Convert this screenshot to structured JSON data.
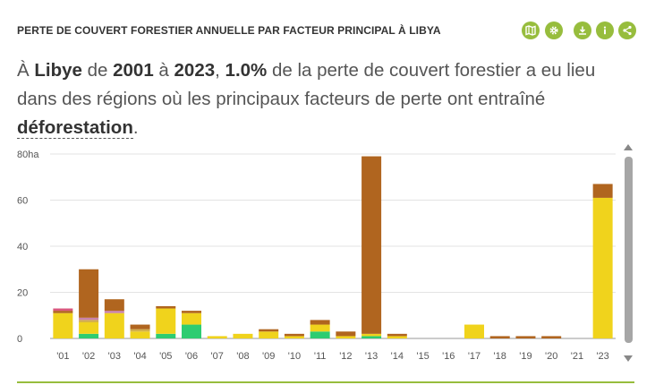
{
  "widget": {
    "title": "PERTE DE COUVERT FORESTIER ANNUELLE PAR FACTEUR PRINCIPAL À LIBYA",
    "sentence": {
      "p1": "À ",
      "country": "Libye",
      "p2": " de ",
      "start_year": "2001",
      "p3": " à ",
      "end_year": "2023",
      "p4": ", ",
      "percent": "1.0%",
      "p5": " de la perte de couvert forestier a eu lieu dans des régions où les principaux facteurs de perte ont entraîné ",
      "driver": "déforestation",
      "p6": "."
    },
    "toolbar": {
      "icons": [
        "map-icon",
        "gear-icon",
        "download-icon",
        "info-icon",
        "share-icon"
      ],
      "accent": "#97bd3d"
    }
  },
  "chart_data": {
    "type": "bar",
    "stacked": true,
    "categories": [
      "'01",
      "'02",
      "'03",
      "'04",
      "'05",
      "'06",
      "'07",
      "'08",
      "'09",
      "'10",
      "'11",
      "'12",
      "'13",
      "'14",
      "'15",
      "'16",
      "'17",
      "'18",
      "'19",
      "'20",
      "'21",
      "'23"
    ],
    "ylim": [
      0,
      80
    ],
    "ytick_values": [
      0,
      20,
      40,
      60,
      80
    ],
    "ytick_labels": [
      "0",
      "20",
      "40",
      "60",
      "80ha"
    ],
    "grid": true,
    "series": [
      {
        "color": "#2ecc71",
        "values": [
          0,
          2,
          0,
          0,
          2,
          6,
          0,
          0,
          0,
          0,
          3,
          0,
          1,
          0,
          0,
          0,
          0,
          0,
          0,
          0,
          0,
          0
        ]
      },
      {
        "color": "#f0d31c",
        "values": [
          11,
          5,
          11,
          3,
          11,
          5,
          1,
          2,
          3,
          1,
          3,
          1,
          1,
          1,
          0,
          0,
          6,
          0,
          0,
          0,
          0,
          61
        ]
      },
      {
        "color": "#d3b04a",
        "values": [
          0,
          1,
          0,
          1,
          0,
          0,
          0,
          0,
          0,
          0,
          0,
          0,
          0,
          0,
          0,
          0,
          0,
          0,
          0,
          0,
          0,
          0
        ]
      },
      {
        "color": "#c982aa",
        "values": [
          0,
          1,
          1,
          0,
          0,
          0,
          0,
          0,
          0,
          0,
          0,
          0,
          0,
          0,
          0,
          0,
          0,
          0,
          0,
          0,
          0,
          0
        ]
      },
      {
        "color": "#b0651f",
        "values": [
          1,
          21,
          5,
          2,
          1,
          1,
          0,
          0,
          1,
          1,
          2,
          2,
          77,
          1,
          0,
          0,
          0,
          1,
          1,
          1,
          0,
          6
        ]
      },
      {
        "color": "#d9577d",
        "values": [
          1,
          0,
          0,
          0,
          0,
          0,
          0,
          0,
          0,
          0,
          0,
          0,
          0,
          0,
          0,
          0,
          0,
          0,
          0,
          0,
          0,
          0
        ]
      }
    ]
  }
}
